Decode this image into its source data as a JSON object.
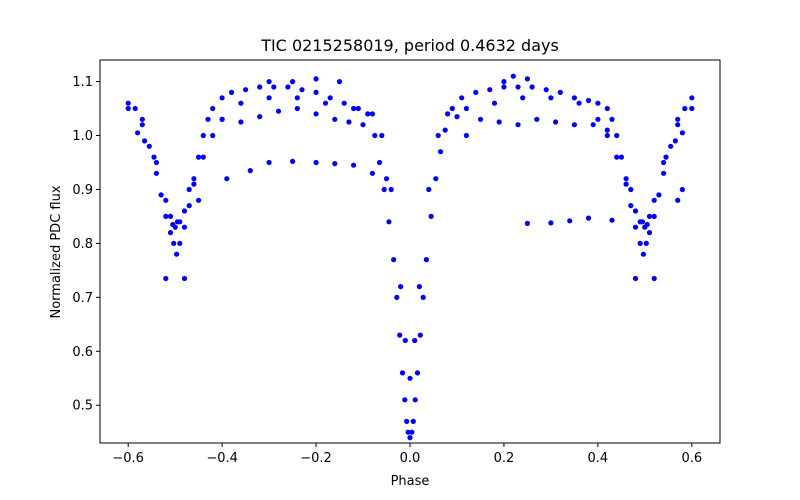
{
  "chart_data": {
    "type": "scatter",
    "title": "TIC 0215258019, period 0.4632 days",
    "xlabel": "Phase",
    "ylabel": "Normalized PDC flux",
    "xlim": [
      -0.66,
      0.66
    ],
    "ylim": [
      0.43,
      1.14
    ],
    "xticks": [
      -0.6,
      -0.4,
      -0.2,
      0.0,
      0.2,
      0.4,
      0.6
    ],
    "xtick_labels": [
      "−0.6",
      "−0.4",
      "−0.2",
      "0.0",
      "0.2",
      "0.4",
      "0.6"
    ],
    "yticks": [
      0.5,
      0.6,
      0.7,
      0.8,
      0.9,
      1.0,
      1.1
    ],
    "ytick_labels": [
      "0.5",
      "0.6",
      "0.7",
      "0.8",
      "0.9",
      "1.0",
      "1.1"
    ],
    "grid": false,
    "legend": "none",
    "marker_color": "#0000ff",
    "series": [
      {
        "x": [
          -0.6,
          -0.585,
          -0.57,
          -0.555,
          -0.54,
          -0.53,
          -0.52,
          -0.51,
          -0.503,
          -0.497,
          -0.49,
          -0.48,
          -0.47,
          -0.46,
          -0.45,
          -0.44,
          -0.43,
          -0.42,
          -0.4,
          -0.38,
          -0.35,
          -0.32,
          -0.29,
          -0.26,
          -0.23,
          -0.2,
          -0.17,
          -0.14,
          -0.11,
          -0.09,
          -0.075,
          -0.065,
          -0.055,
          -0.045,
          -0.035,
          -0.028,
          -0.022,
          -0.016,
          -0.011,
          -0.007,
          -0.004,
          0.0,
          0.004,
          0.007,
          0.011,
          0.016,
          0.022,
          0.028,
          0.035,
          0.045,
          0.055,
          0.065,
          0.075,
          0.09,
          0.11,
          0.14,
          0.17,
          0.2,
          0.23,
          0.26,
          0.29,
          0.32,
          0.35,
          0.38,
          0.4,
          0.42,
          0.43,
          0.44,
          0.45,
          0.46,
          0.47,
          0.48,
          0.49,
          0.497,
          0.503,
          0.51,
          0.52,
          0.53,
          0.54,
          0.555,
          0.57,
          0.585,
          0.6
        ],
        "y": [
          1.06,
          1.05,
          1.02,
          0.98,
          0.93,
          0.89,
          0.85,
          0.82,
          0.8,
          0.78,
          0.8,
          0.83,
          0.87,
          0.92,
          0.96,
          1.0,
          1.03,
          1.05,
          1.07,
          1.08,
          1.085,
          1.09,
          1.09,
          1.09,
          1.085,
          1.08,
          1.07,
          1.06,
          1.05,
          1.04,
          1.0,
          0.95,
          0.9,
          0.84,
          0.77,
          0.7,
          0.63,
          0.56,
          0.51,
          0.47,
          0.45,
          0.44,
          0.45,
          0.47,
          0.51,
          0.56,
          0.63,
          0.7,
          0.77,
          0.85,
          0.92,
          0.97,
          1.01,
          1.05,
          1.07,
          1.08,
          1.085,
          1.09,
          1.09,
          1.09,
          1.085,
          1.08,
          1.07,
          1.065,
          1.06,
          1.05,
          1.03,
          1.0,
          0.96,
          0.92,
          0.87,
          0.83,
          0.8,
          0.78,
          0.8,
          0.82,
          0.85,
          0.89,
          0.93,
          0.98,
          1.02,
          1.05,
          1.07
        ]
      },
      {
        "x": [
          -0.6,
          -0.57,
          -0.54,
          -0.52,
          -0.51,
          -0.5,
          -0.49,
          -0.48,
          -0.46,
          -0.44,
          -0.42,
          -0.4,
          -0.36,
          -0.3,
          -0.24,
          -0.18,
          -0.12,
          -0.08,
          -0.06,
          -0.04,
          -0.02,
          -0.01,
          0.0,
          0.01,
          0.02,
          0.04,
          0.06,
          0.08,
          0.12,
          0.18,
          0.24,
          0.3,
          0.36,
          0.4,
          0.42,
          0.44,
          0.46,
          0.48,
          0.49,
          0.5,
          0.51,
          0.52,
          0.54,
          0.57,
          0.6
        ],
        "y": [
          1.05,
          1.03,
          0.95,
          0.88,
          0.85,
          0.83,
          0.84,
          0.86,
          0.91,
          0.96,
          1.0,
          1.03,
          1.06,
          1.07,
          1.07,
          1.06,
          1.05,
          1.04,
          1.0,
          0.9,
          0.72,
          0.62,
          0.55,
          0.62,
          0.72,
          0.9,
          1.0,
          1.04,
          1.05,
          1.06,
          1.07,
          1.07,
          1.06,
          1.03,
          1.0,
          0.96,
          0.91,
          0.86,
          0.84,
          0.83,
          0.85,
          0.88,
          0.95,
          1.03,
          1.05
        ]
      },
      {
        "x": [
          -0.52,
          -0.48,
          -0.45,
          -0.39,
          -0.34,
          -0.3,
          -0.25,
          -0.2,
          -0.16,
          -0.12,
          -0.08,
          -0.05,
          0.25,
          0.3,
          0.34,
          0.38,
          0.43,
          0.48,
          0.52,
          0.57,
          0.58
        ],
        "y": [
          0.735,
          0.735,
          0.88,
          0.92,
          0.935,
          0.95,
          0.952,
          0.95,
          0.948,
          0.945,
          0.93,
          0.92,
          0.837,
          0.838,
          0.842,
          0.847,
          0.843,
          0.735,
          0.735,
          0.88,
          0.9
        ]
      },
      {
        "x": [
          -0.4,
          -0.36,
          -0.32,
          -0.28,
          -0.24,
          -0.2,
          -0.16,
          -0.13,
          -0.1,
          0.1,
          0.12,
          0.15,
          0.19,
          0.23,
          0.27,
          0.31,
          0.35,
          0.39,
          0.42
        ],
        "y": [
          1.03,
          1.025,
          1.035,
          1.045,
          1.05,
          1.04,
          1.03,
          1.025,
          1.02,
          1.035,
          1.0,
          1.03,
          1.025,
          1.02,
          1.03,
          1.025,
          1.02,
          1.02,
          1.01
        ]
      },
      {
        "x": [
          -0.58,
          -0.565,
          -0.545,
          -0.505,
          -0.495,
          -0.47,
          0.47,
          0.495,
          0.505,
          0.545,
          0.565,
          0.58
        ],
        "y": [
          1.005,
          0.99,
          0.96,
          0.835,
          0.84,
          0.9,
          0.9,
          0.84,
          0.835,
          0.96,
          0.99,
          1.005
        ]
      },
      {
        "x": [
          -0.3,
          -0.25,
          -0.2,
          -0.15,
          0.2,
          0.22,
          0.25
        ],
        "y": [
          1.1,
          1.1,
          1.105,
          1.1,
          1.1,
          1.11,
          1.105
        ]
      }
    ]
  }
}
